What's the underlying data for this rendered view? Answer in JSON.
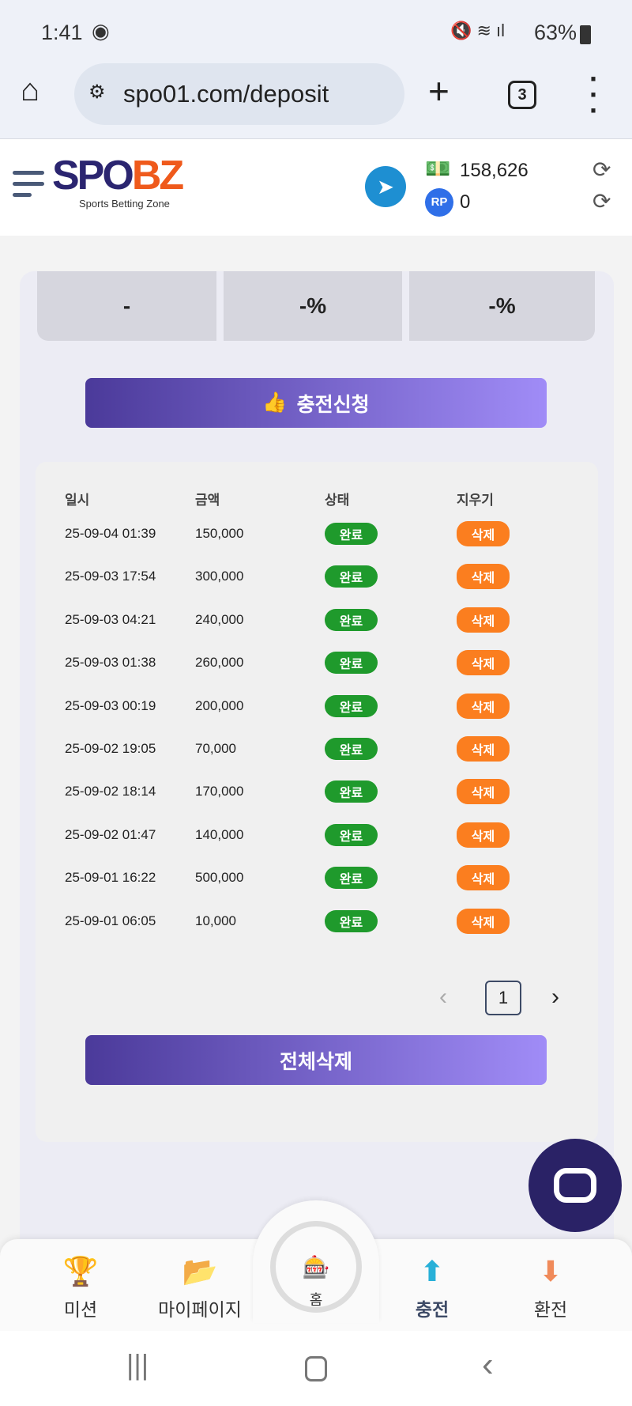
{
  "status_bar": {
    "time": "1:41",
    "battery": "63%"
  },
  "browser": {
    "url": "spo01.com/deposit",
    "tab_count": "3"
  },
  "header": {
    "logo": "SPOBZ",
    "logo_tagline": "Sports Betting Zone",
    "money": "158,626",
    "points": "0"
  },
  "stats": [
    "-",
    "-%",
    "-%"
  ],
  "deposit_button": "충전신청",
  "table": {
    "headers": [
      "일시",
      "금액",
      "상태",
      "지우기"
    ],
    "rows": [
      {
        "date": "25-09-04 01:39",
        "amount": "150,000",
        "status": "완료",
        "action": "삭제"
      },
      {
        "date": "25-09-03 17:54",
        "amount": "300,000",
        "status": "완료",
        "action": "삭제"
      },
      {
        "date": "25-09-03 04:21",
        "amount": "240,000",
        "status": "완료",
        "action": "삭제"
      },
      {
        "date": "25-09-03 01:38",
        "amount": "260,000",
        "status": "완료",
        "action": "삭제"
      },
      {
        "date": "25-09-03 00:19",
        "amount": "200,000",
        "status": "완료",
        "action": "삭제"
      },
      {
        "date": "25-09-02 19:05",
        "amount": "70,000",
        "status": "완료",
        "action": "삭제"
      },
      {
        "date": "25-09-02 18:14",
        "amount": "170,000",
        "status": "완료",
        "action": "삭제"
      },
      {
        "date": "25-09-02 01:47",
        "amount": "140,000",
        "status": "완료",
        "action": "삭제"
      },
      {
        "date": "25-09-01 16:22",
        "amount": "500,000",
        "status": "완료",
        "action": "삭제"
      },
      {
        "date": "25-09-01 06:05",
        "amount": "10,000",
        "status": "완료",
        "action": "삭제"
      }
    ]
  },
  "pagination": {
    "current": "1"
  },
  "delete_all_button": "전체삭제",
  "bottom_nav": [
    {
      "label": "미션",
      "icon": "trophy-icon"
    },
    {
      "label": "마이페이지",
      "icon": "folder-icon"
    },
    {
      "label": "홈",
      "icon": "home-logo-icon"
    },
    {
      "label": "충전",
      "icon": "deposit-icon"
    },
    {
      "label": "환전",
      "icon": "withdraw-icon"
    }
  ],
  "colors": {
    "accent": "#4b3a9a",
    "complete": "#1f9a2c",
    "delete": "#fb7e1f",
    "chat": "#2a2266"
  }
}
